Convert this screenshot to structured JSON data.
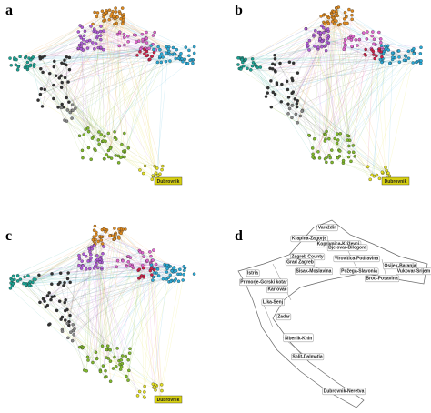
{
  "panels": [
    {
      "letter": "a",
      "labels": [
        "Dubrovnik"
      ]
    },
    {
      "letter": "b",
      "labels": [
        "Dubrovnik"
      ]
    },
    {
      "letter": "c",
      "labels": [
        "Dubrovnik"
      ]
    },
    {
      "letter": "d",
      "labels": [
        "Istria",
        "Primorje-Gorski kotar",
        "Karlovac",
        "Zagreb County",
        "Grad Zagreb",
        "Krapina-Zagorje",
        "Varaždin",
        "Koprivnica-Križevci",
        "Bjelovar-Bilogora",
        "Virovitica-Podravina",
        "Sisak-Moslavina",
        "Požega-Slavonia",
        "Brod-Posavina",
        "Osijek-Baranja",
        "Vukovar-Srijem",
        "Lika-Senj",
        "Zadar",
        "Šibenik-Knin",
        "Split-Dalmatia",
        "Dubrovnik-Neretva"
      ]
    }
  ]
}
